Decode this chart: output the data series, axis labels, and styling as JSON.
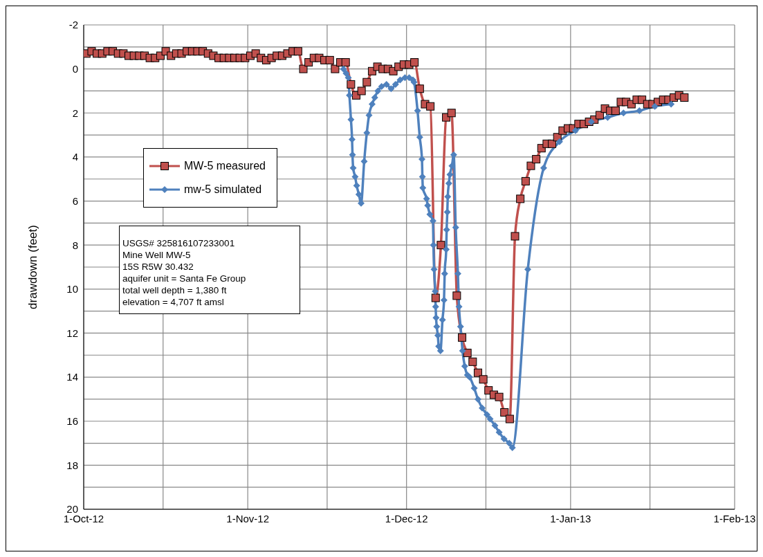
{
  "chart_data": {
    "type": "line",
    "ylabel": "drawdown  (feet)",
    "ylim": [
      20,
      -2
    ],
    "yticks": [
      -2,
      {
        "value": -1,
        "label": null
      },
      0,
      {
        "value": 1,
        "label": null
      },
      2,
      {
        "value": 3,
        "label": null
      },
      4,
      {
        "value": 5,
        "label": null
      },
      6,
      {
        "value": 7,
        "label": null
      },
      8,
      {
        "value": 9,
        "label": null
      },
      10,
      {
        "value": 11,
        "label": null
      },
      12,
      {
        "value": 13,
        "label": null
      },
      14,
      {
        "value": 15,
        "label": null
      },
      16,
      {
        "value": 17,
        "label": null
      },
      18,
      {
        "value": 19,
        "label": null
      },
      20
    ],
    "xlim": [
      "2012-10-01",
      "2013-02-01"
    ],
    "xticks": [
      {
        "value": "2012-10-01",
        "label": "1-Oct-12"
      },
      {
        "value": "2012-10-16",
        "label": null
      },
      {
        "value": "2012-11-01",
        "label": "1-Nov-12"
      },
      {
        "value": "2012-11-16",
        "label": null
      },
      {
        "value": "2012-12-01",
        "label": "1-Dec-12"
      },
      {
        "value": "2012-12-16",
        "label": null
      },
      {
        "value": "2013-01-01",
        "label": "1-Jan-13"
      },
      {
        "value": "2013-01-16",
        "label": null
      },
      {
        "value": "2013-02-01",
        "label": "1-Feb-13"
      }
    ],
    "grid": true,
    "legend": "top left",
    "line_style": "solid",
    "annotations": [
      "USGS# 325816107233001",
      "Mine Well MW-5",
      "15S R5W 30.432",
      "aquifer unit = Santa Fe Group",
      "total well depth = 1,380 ft",
      "elevation = 4,707 ft amsl"
    ],
    "series": [
      {
        "name": "MW-5 measured",
        "color": "#c0504d",
        "marker": "square",
        "x": [
          "2012-10-01T12:00",
          "2012-10-02T12:00",
          "2012-10-03T12:00",
          "2012-10-04T12:00",
          "2012-10-05T12:00",
          "2012-10-06T12:00",
          "2012-10-07T12:00",
          "2012-10-08T12:00",
          "2012-10-09T12:00",
          "2012-10-10T12:00",
          "2012-10-11T12:00",
          "2012-10-12T12:00",
          "2012-10-13T12:00",
          "2012-10-14T12:00",
          "2012-10-15T12:00",
          "2012-10-16T12:00",
          "2012-10-17T12:00",
          "2012-10-18T12:00",
          "2012-10-19T12:00",
          "2012-10-20T12:00",
          "2012-10-21T12:00",
          "2012-10-22T12:00",
          "2012-10-23T12:00",
          "2012-10-24T12:00",
          "2012-10-25T12:00",
          "2012-10-26T12:00",
          "2012-10-27T12:00",
          "2012-10-28T12:00",
          "2012-10-29T12:00",
          "2012-10-30T12:00",
          "2012-10-31T12:00",
          "2012-11-01T12:00",
          "2012-11-02T12:00",
          "2012-11-03T12:00",
          "2012-11-04T12:00",
          "2012-11-05T12:00",
          "2012-11-06T12:00",
          "2012-11-07T12:00",
          "2012-11-08T12:00",
          "2012-11-09T12:00",
          "2012-11-10T12:00",
          "2012-11-11T12:00",
          "2012-11-12T12:00",
          "2012-11-13T12:00",
          "2012-11-14T12:00",
          "2012-11-15T12:00",
          "2012-11-16T12:00",
          "2012-11-17T12:00",
          "2012-11-18T12:00",
          "2012-11-19T12:00",
          "2012-11-20T12:00",
          "2012-11-21T12:00",
          "2012-11-22T12:00",
          "2012-11-23T12:00",
          "2012-11-24T12:00",
          "2012-11-25T12:00",
          "2012-11-26T12:00",
          "2012-11-27T12:00",
          "2012-11-28T12:00",
          "2012-11-29T12:00",
          "2012-11-30T12:00",
          "2012-12-01T12:00",
          "2012-12-02T12:00",
          "2012-12-03T12:00",
          "2012-12-04T12:00",
          "2012-12-05T12:00",
          "2012-12-06T12:00",
          "2012-12-07T12:00",
          "2012-12-08T12:00",
          "2012-12-09T12:00",
          "2012-12-10T12:00",
          "2012-12-11T12:00",
          "2012-12-12T12:00",
          "2012-12-13T12:00",
          "2012-12-14T12:00",
          "2012-12-15T12:00",
          "2012-12-16T12:00",
          "2012-12-17T12:00",
          "2012-12-18T12:00",
          "2012-12-19T12:00",
          "2012-12-20T12:00",
          "2012-12-21T12:00",
          "2012-12-22T12:00",
          "2012-12-23T12:00",
          "2012-12-24T12:00",
          "2012-12-25T12:00",
          "2012-12-26T12:00",
          "2012-12-27T12:00",
          "2012-12-28T12:00",
          "2012-12-29T12:00",
          "2012-12-30T12:00",
          "2012-12-31T12:00",
          "2013-01-01T12:00",
          "2013-01-02T12:00",
          "2013-01-03T12:00",
          "2013-01-04T12:00",
          "2013-01-05T12:00",
          "2013-01-06T12:00",
          "2013-01-07T12:00",
          "2013-01-08T12:00",
          "2013-01-09T12:00",
          "2013-01-10T12:00",
          "2013-01-11T12:00",
          "2013-01-12T12:00",
          "2013-01-13T12:00",
          "2013-01-14T12:00",
          "2013-01-15T12:00",
          "2013-01-16T12:00",
          "2013-01-17T12:00",
          "2013-01-18T12:00",
          "2013-01-19T12:00",
          "2013-01-20T12:00",
          "2013-01-21T12:00",
          "2013-01-22T12:00"
        ],
        "values": [
          -0.7,
          -0.8,
          -0.7,
          -0.7,
          -0.8,
          -0.8,
          -0.7,
          -0.7,
          -0.6,
          -0.6,
          -0.6,
          -0.6,
          -0.5,
          -0.5,
          -0.6,
          -0.8,
          -0.6,
          -0.7,
          -0.7,
          -0.8,
          -0.8,
          -0.8,
          -0.8,
          -0.7,
          -0.6,
          -0.5,
          -0.5,
          -0.5,
          -0.5,
          -0.5,
          -0.5,
          -0.6,
          -0.7,
          -0.5,
          -0.4,
          -0.5,
          -0.6,
          -0.6,
          -0.7,
          -0.8,
          -0.8,
          0.0,
          -0.3,
          -0.5,
          -0.5,
          -0.4,
          -0.4,
          0.0,
          -0.3,
          -0.3,
          0.7,
          1.2,
          1.0,
          0.6,
          0.1,
          -0.1,
          0.0,
          0.0,
          0.1,
          -0.1,
          -0.2,
          -0.2,
          -0.3,
          0.9,
          1.6,
          1.7,
          10.4,
          8.0,
          2.2,
          2.0,
          10.3,
          12.2,
          12.9,
          13.3,
          13.8,
          14.1,
          14.6,
          14.8,
          14.9,
          15.6,
          15.9,
          7.6,
          5.9,
          5.1,
          4.4,
          4.1,
          3.6,
          3.4,
          3.4,
          3.1,
          2.8,
          2.7,
          2.7,
          2.5,
          2.5,
          2.4,
          2.3,
          2.1,
          1.8,
          1.9,
          1.9,
          1.5,
          1.5,
          1.6,
          1.4,
          1.4,
          1.6,
          1.6,
          1.5,
          1.4,
          1.4,
          1.3,
          1.2,
          1.3
        ]
      },
      {
        "name": "mw-5 simulated",
        "color": "#4f81bd",
        "marker": "diamond",
        "x": [
          "2012-11-19T02:00",
          "2012-11-19T14:00",
          "2012-11-20T00:00",
          "2012-11-20T05:00",
          "2012-11-20T12:00",
          "2012-11-20T17:00",
          "2012-11-20T19:00",
          "2012-11-20T22:00",
          "2012-11-21T07:00",
          "2012-11-21T14:00",
          "2012-11-22T00:00",
          "2012-11-22T10:00",
          "2012-11-23T00:00",
          "2012-11-23T12:00",
          "2012-11-23T22:00",
          "2012-11-24T12:00",
          "2012-11-25T00:00",
          "2012-11-25T14:00",
          "2012-11-26T07:00",
          "2012-11-27T05:00",
          "2012-11-28T02:00",
          "2012-11-28T22:00",
          "2012-11-29T19:00",
          "2012-11-30T17:00",
          "2012-12-01T12:00",
          "2012-12-02T05:00",
          "2012-12-02T10:00",
          "2012-12-03T02:00",
          "2012-12-03T12:00",
          "2012-12-03T22:00",
          "2012-12-04T00:00",
          "2012-12-04T02:00",
          "2012-12-04T19:00",
          "2012-12-05T00:00",
          "2012-12-05T10:00",
          "2012-12-06T00:00",
          "2012-12-06T02:00",
          "2012-12-06T05:00",
          "2012-12-06T10:00",
          "2012-12-06T12:00",
          "2012-12-06T14:00",
          "2012-12-06T17:00",
          "2012-12-06T22:00",
          "2012-12-07T02:00",
          "2012-12-07T10:00",
          "2012-12-07T19:00",
          "2012-12-08T02:00",
          "2012-12-08T05:00",
          "2012-12-08T12:00",
          "2012-12-08T14:00",
          "2012-12-08T17:00",
          "2012-12-08T19:00",
          "2012-12-09T00:00",
          "2012-12-09T05:00",
          "2012-12-09T14:00",
          "2012-12-09T22:00",
          "2012-12-10T07:00",
          "2012-12-10T17:00",
          "2012-12-10T22:00",
          "2012-12-11T05:00",
          "2012-12-11T14:00",
          "2012-12-12T00:00",
          "2012-12-12T12:00",
          "2012-12-12T22:00",
          "2012-12-13T19:00",
          "2012-12-14T12:00",
          "2012-12-15T07:00",
          "2012-12-16T05:00",
          "2012-12-16T19:00",
          "2012-12-17T17:00",
          "2012-12-18T12:00",
          "2012-12-19T10:00",
          "2012-12-20T10:00",
          "2012-12-21T00:00",
          "2012-12-23T22:00",
          "2012-12-26T22:00",
          "2012-12-29T22:00",
          "2013-01-01T22:00",
          "2013-01-04T22:00",
          "2013-01-08T00:00",
          "2013-01-11T00:00",
          "2013-01-14T00:00",
          "2013-01-16T22:00",
          "2013-01-20T00:00"
        ],
        "values": [
          0.0,
          0.2,
          0.4,
          1.2,
          2.3,
          3.2,
          3.9,
          4.5,
          4.9,
          5.3,
          5.7,
          6.1,
          4.2,
          2.9,
          2.1,
          1.6,
          1.3,
          1.0,
          0.8,
          0.7,
          0.9,
          0.7,
          0.5,
          0.4,
          0.4,
          0.5,
          0.6,
          1.9,
          3.1,
          4.1,
          4.9,
          5.4,
          5.9,
          6.2,
          6.6,
          6.9,
          8.0,
          9.1,
          10.1,
          10.8,
          11.3,
          11.7,
          12.1,
          12.6,
          12.8,
          11.4,
          10.5,
          9.3,
          8.2,
          7.3,
          6.5,
          5.8,
          5.2,
          4.8,
          4.4,
          3.9,
          7.2,
          9.3,
          10.8,
          11.7,
          12.8,
          13.5,
          13.9,
          14.0,
          14.5,
          15.0,
          15.4,
          15.7,
          15.9,
          16.2,
          16.5,
          16.8,
          17.0,
          17.2,
          9.1,
          4.5,
          3.3,
          2.8,
          2.4,
          2.2,
          2.0,
          1.9,
          1.7,
          1.6
        ]
      }
    ]
  }
}
